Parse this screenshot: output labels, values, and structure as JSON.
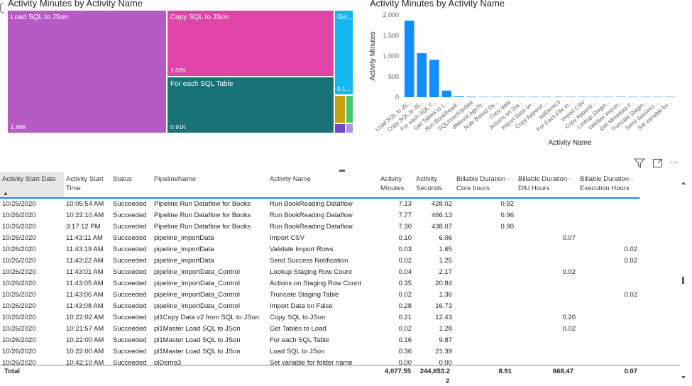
{
  "treemap": {
    "title": "Activity Minutes by Activity Name",
    "cells": [
      {
        "name": "Load SQL to JSon",
        "value": "1.86K",
        "color": "#b65ac6"
      },
      {
        "name": "Copy SQL to JSon",
        "value": "1.07K",
        "color": "#e044a7"
      },
      {
        "name": "For each SQL Table",
        "value": "0.91K",
        "color": "#197278"
      },
      {
        "name": "Ge...",
        "value": "0.1...",
        "color": "#12b8f0"
      },
      {
        "name": "",
        "value": "",
        "color": "#c8a013"
      },
      {
        "name": "",
        "value": "",
        "color": "#45c96b"
      },
      {
        "name": "",
        "value": "",
        "color": "#6b48c8"
      },
      {
        "name": "",
        "value": "",
        "color": "#b08fe0"
      }
    ]
  },
  "chart_data": {
    "type": "bar",
    "title": "Activity Minutes by Activity Name",
    "xlabel": "Activity Name",
    "ylabel": "Activity Minutes",
    "ylim": [
      0,
      2000
    ],
    "yticks": [
      "0",
      "500",
      "1,000",
      "1,500",
      "2,000"
    ],
    "categories": [
      "Load SQL to JS...",
      "Copy SQL to JS...",
      "For each SQL T...",
      "Get Tables to L...",
      "Run BookReadi...",
      "SQLInsertUpdate",
      "dfMoveLogsTo...",
      "Rule Based Dy...",
      "Copy data",
      "Actions on Sta...",
      "Import Data on...",
      "Copy Append ...",
      "eplDemo3",
      "For Each File In...",
      "Import CSV",
      "Copy Append ...",
      "Lookup Stagin...",
      "Validate Import...",
      "Get Metadata F...",
      "Truncate Stagin...",
      "Send Success ...",
      "Set variable for..."
    ],
    "values": [
      1860,
      1070,
      910,
      160,
      22,
      13,
      8,
      6,
      4,
      3,
      2,
      2,
      2,
      1,
      1,
      1,
      1,
      1,
      1,
      1,
      0.5,
      0.5
    ],
    "bar_color": "#118dff"
  },
  "table": {
    "headers": [
      "Activity Start Date",
      "Activity Start Time",
      "Status",
      "PipelineName",
      "Activity Name",
      "Activity Minutes",
      "Activity Seconds",
      "Billable Duration - Core hours",
      "Billable Duration - DIU Hours",
      "Billable Duration - Execution Hours"
    ],
    "sort_indicator": "▲",
    "rows": [
      [
        "10/26/2020",
        "10:05:54 AM",
        "Succeeded",
        "Pipeline Run Dataflow for Books",
        "Run BookReading Dataflow",
        "7.13",
        "428.02",
        "0.92",
        "",
        ""
      ],
      [
        "10/26/2020",
        "10:22:10 AM",
        "Succeeded",
        "Pipeline Run Dataflow for Books",
        "Run BookReading Dataflow",
        "7.77",
        "466.13",
        "0.96",
        "",
        ""
      ],
      [
        "10/26/2020",
        "3:17:12 PM",
        "Succeeded",
        "Pipeline Run Dataflow for Books",
        "Run BookReading Dataflow",
        "7.30",
        "438.07",
        "0.90",
        "",
        ""
      ],
      [
        "10/26/2020",
        "11:43:11 AM",
        "Succeeded",
        "pipeline_importData",
        "Import CSV",
        "0.10",
        "6.06",
        "",
        "0.07",
        ""
      ],
      [
        "10/26/2020",
        "11:43:19 AM",
        "Succeeded",
        "pipeline_importData",
        "Validate Import Rows",
        "0.03",
        "1.65",
        "",
        "",
        "0.02"
      ],
      [
        "10/26/2020",
        "11:43:22 AM",
        "Succeeded",
        "pipeline_importData",
        "Send Success Notification",
        "0.02",
        "1.25",
        "",
        "",
        "0.02"
      ],
      [
        "10/26/2020",
        "11:43:01 AM",
        "Succeeded",
        "pipeline_ImportData_Control",
        "Lookup Staging Row Count",
        "0.04",
        "2.17",
        "",
        "0.02",
        ""
      ],
      [
        "10/26/2020",
        "11:43:05 AM",
        "Succeeded",
        "pipeline_ImportData_Control",
        "Actions on Staging Row Count",
        "0.35",
        "20.84",
        "",
        "",
        ""
      ],
      [
        "10/26/2020",
        "11:43:06 AM",
        "Succeeded",
        "pipeline_ImportData_Control",
        "Truncate Staging Table",
        "0.02",
        "1.36",
        "",
        "",
        "0.02"
      ],
      [
        "10/26/2020",
        "11:43:08 AM",
        "Succeeded",
        "pipeline_ImportData_Control",
        "Import Data on False",
        "0.28",
        "16.73",
        "",
        "",
        ""
      ],
      [
        "10/26/2020",
        "10:22:02 AM",
        "Succeeded",
        "pl1Copy Data v2 from SQL to JSon",
        "Copy SQL to JSon",
        "0.21",
        "12.43",
        "",
        "0.20",
        ""
      ],
      [
        "10/26/2020",
        "10:21:57 AM",
        "Succeeded",
        "pl1Master Load SQL to JSon",
        "Get Tables to Load",
        "0.02",
        "1.28",
        "",
        "0.02",
        ""
      ],
      [
        "10/26/2020",
        "10:22:00 AM",
        "Succeeded",
        "pl1Master Load SQL to JSon",
        "For each SQL Table",
        "0.16",
        "9.87",
        "",
        "",
        ""
      ],
      [
        "10/26/2020",
        "10:22:00 AM",
        "Succeeded",
        "pl1Master Load SQL to JSon",
        "Load SQL to JSon",
        "0.36",
        "21.39",
        "",
        "",
        ""
      ],
      [
        "10/26/2020",
        "10:42:10 AM",
        "Succeeded",
        "plDemo3",
        "Set variable for folder name",
        "0.00",
        "0.00",
        "",
        "",
        ""
      ]
    ],
    "total": {
      "label": "Total",
      "activity_minutes": "4,077.55",
      "activity_seconds": "244,653.2",
      "activity_seconds_wrap": "2",
      "core_hours": "8.91",
      "diu_hours": "668.47",
      "execution_hours": "0.07"
    }
  },
  "toolbar": {
    "filter_icon": "filter-icon",
    "focus_icon": "focus-mode-icon",
    "more_label": "···"
  }
}
